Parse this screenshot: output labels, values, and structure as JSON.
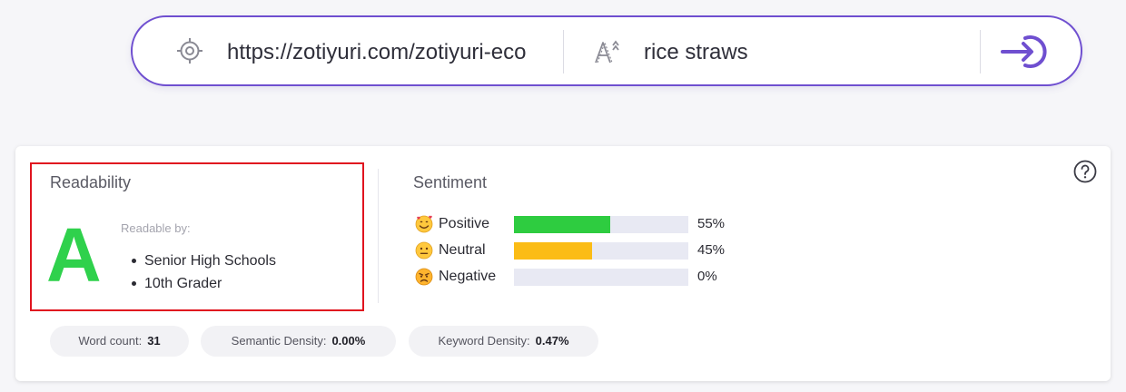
{
  "search": {
    "url_value": "https://zotiyuri.com/zotiyuri-eco",
    "keyword_value": "rice straws",
    "icons": {
      "url": "crosshair-icon",
      "keyword": "font-size-icon",
      "submit": "arrow-right-circle-icon"
    }
  },
  "readability": {
    "title": "Readability",
    "grade": "A",
    "readable_by_label": "Readable by:",
    "audiences": [
      "Senior High Schools",
      "10th Grader"
    ]
  },
  "sentiment": {
    "title": "Sentiment",
    "rows": [
      {
        "label": "Positive",
        "percent_text": "55%",
        "value": 55,
        "color": "#2ecc40",
        "icon": "smiling-hearts-emoji-icon"
      },
      {
        "label": "Neutral",
        "percent_text": "45%",
        "value": 45,
        "color": "#fbbc16",
        "icon": "neutral-face-emoji-icon"
      },
      {
        "label": "Negative",
        "percent_text": "0%",
        "value": 0,
        "color": "#e94b3c",
        "icon": "angry-face-emoji-icon"
      }
    ]
  },
  "stats": {
    "word_count_label": "Word count:",
    "word_count_value": "31",
    "semantic_density_label": "Semantic Density:",
    "semantic_density_value": "0.00%",
    "keyword_density_label": "Keyword Density:",
    "keyword_density_value": "0.47%"
  },
  "colors": {
    "accent": "#6f4fd0",
    "grade": "#2fd14c",
    "highlight_border": "#e0141f"
  }
}
